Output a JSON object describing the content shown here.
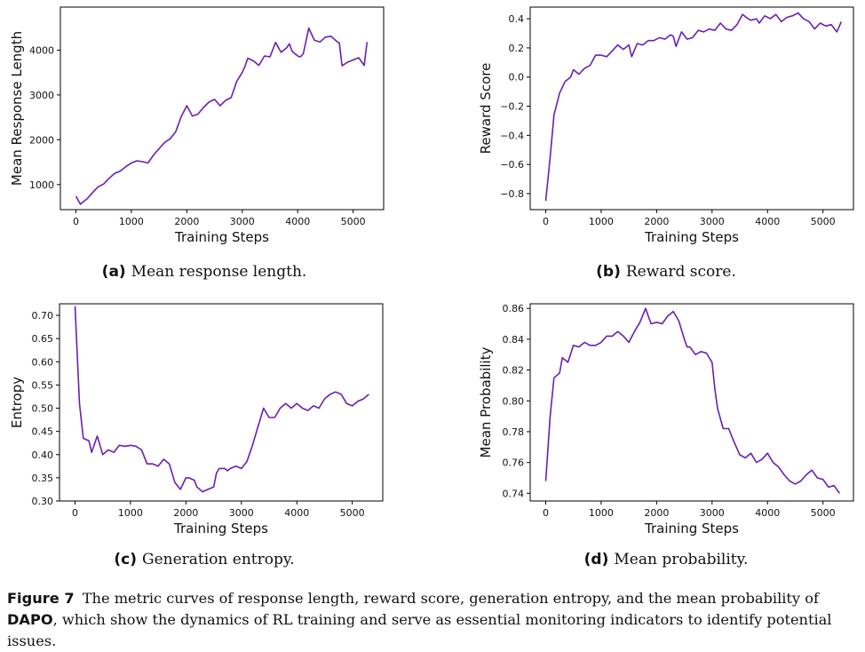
{
  "chart_data": [
    {
      "type": "line",
      "xlabel": "Training Steps",
      "ylabel": "Mean Response Length",
      "xlim": [
        -280,
        5550
      ],
      "ylim": [
        440,
        4960
      ],
      "xticks": [
        0,
        1000,
        2000,
        3000,
        4000,
        5000
      ],
      "yticks": [
        1000,
        2000,
        3000,
        4000
      ],
      "color": "#6a1fb3",
      "series": [
        {
          "x": [
            0,
            80,
            200,
            300,
            400,
            500,
            600,
            700,
            800,
            900,
            1000,
            1100,
            1200,
            1300,
            1400,
            1500,
            1600,
            1700,
            1800,
            1900,
            2000,
            2100,
            2200,
            2300,
            2400,
            2500,
            2600,
            2700,
            2800,
            2900,
            3000,
            3050,
            3100,
            3200,
            3300,
            3400,
            3500,
            3600,
            3700,
            3800,
            3850,
            3900,
            4000,
            4050,
            4100,
            4200,
            4300,
            4400,
            4500,
            4600,
            4700,
            4750,
            4800,
            4900,
            5000,
            5100,
            5200,
            5250
          ],
          "y": [
            740,
            560,
            680,
            820,
            950,
            1010,
            1140,
            1250,
            1300,
            1400,
            1480,
            1530,
            1510,
            1480,
            1660,
            1800,
            1940,
            2020,
            2180,
            2520,
            2760,
            2530,
            2570,
            2720,
            2840,
            2900,
            2760,
            2880,
            2940,
            3300,
            3500,
            3640,
            3820,
            3760,
            3660,
            3870,
            3850,
            4170,
            3950,
            4050,
            4140,
            3970,
            3870,
            3850,
            3920,
            4490,
            4220,
            4180,
            4290,
            4310,
            4200,
            4160,
            3650,
            3730,
            3780,
            3830,
            3660,
            4180
          ],
          "note": "continued"
        }
      ]
    },
    {
      "type": "line",
      "xlabel": "Training Steps",
      "ylabel": "Reward Score",
      "xlim": [
        -280,
        5550
      ],
      "ylim": [
        -0.91,
        0.48
      ],
      "xticks": [
        0,
        1000,
        2000,
        3000,
        4000,
        5000
      ],
      "yticks": [
        -0.8,
        -0.6,
        -0.4,
        -0.2,
        0.0,
        0.2,
        0.4
      ],
      "ytick_labels": [
        "−0.8",
        "−0.6",
        "−0.4",
        "−0.2",
        "0.0",
        "0.2",
        "0.4"
      ],
      "color": "#6a1fb3",
      "series": [
        {
          "x": [
            0,
            80,
            150,
            250,
            350,
            450,
            500,
            600,
            700,
            800,
            900,
            1000,
            1100,
            1200,
            1300,
            1400,
            1500,
            1550,
            1650,
            1750,
            1850,
            1950,
            2050,
            2150,
            2250,
            2300,
            2350,
            2450,
            2550,
            2650,
            2750,
            2850,
            2950,
            3050,
            3150,
            3250,
            3350,
            3450,
            3550,
            3650,
            3700,
            3800,
            3850,
            3950,
            4050,
            4150,
            4250,
            4350,
            4450,
            4550,
            4650,
            4750,
            4850,
            4950,
            5050,
            5150,
            5250,
            5330
          ],
          "y": [
            -0.85,
            -0.55,
            -0.26,
            -0.11,
            -0.03,
            0.0,
            0.05,
            0.02,
            0.06,
            0.08,
            0.15,
            0.15,
            0.14,
            0.18,
            0.22,
            0.19,
            0.22,
            0.14,
            0.23,
            0.22,
            0.25,
            0.25,
            0.27,
            0.26,
            0.29,
            0.28,
            0.21,
            0.31,
            0.26,
            0.27,
            0.32,
            0.31,
            0.33,
            0.32,
            0.37,
            0.33,
            0.32,
            0.36,
            0.43,
            0.4,
            0.39,
            0.4,
            0.37,
            0.42,
            0.4,
            0.43,
            0.38,
            0.41,
            0.42,
            0.44,
            0.4,
            0.38,
            0.33,
            0.37,
            0.35,
            0.36,
            0.31,
            0.38
          ],
          "note": "continued"
        }
      ]
    },
    {
      "type": "line",
      "xlabel": "Training Steps",
      "ylabel": "Entropy",
      "xlim": [
        -280,
        5550
      ],
      "ylim": [
        0.3,
        0.725
      ],
      "xticks": [
        0,
        1000,
        2000,
        3000,
        4000,
        5000
      ],
      "yticks": [
        0.3,
        0.35,
        0.4,
        0.45,
        0.5,
        0.55,
        0.6,
        0.65,
        0.7
      ],
      "ytick_labels": [
        "0.30",
        "0.35",
        "0.40",
        "0.45",
        "0.50",
        "0.55",
        "0.60",
        "0.65",
        "0.70"
      ],
      "color": "#6a1fb3",
      "series": [
        {
          "x": [
            0,
            80,
            150,
            250,
            300,
            400,
            500,
            600,
            700,
            800,
            900,
            1000,
            1100,
            1200,
            1300,
            1400,
            1500,
            1600,
            1700,
            1800,
            1900,
            2000,
            2050,
            2150,
            2200,
            2300,
            2400,
            2500,
            2550,
            2600,
            2700,
            2750,
            2800,
            2900,
            3000,
            3100,
            3200,
            3300,
            3400,
            3500,
            3600,
            3700,
            3800,
            3900,
            4000,
            4100,
            4200,
            4300,
            4400,
            4500,
            4600,
            4700,
            4800,
            4900,
            5000,
            5100,
            5200,
            5300
          ],
          "y": [
            0.72,
            0.51,
            0.435,
            0.43,
            0.405,
            0.44,
            0.4,
            0.41,
            0.405,
            0.42,
            0.418,
            0.42,
            0.418,
            0.41,
            0.38,
            0.38,
            0.375,
            0.39,
            0.38,
            0.34,
            0.325,
            0.35,
            0.35,
            0.345,
            0.33,
            0.32,
            0.325,
            0.33,
            0.36,
            0.37,
            0.37,
            0.365,
            0.37,
            0.375,
            0.37,
            0.385,
            0.42,
            0.46,
            0.5,
            0.48,
            0.48,
            0.5,
            0.51,
            0.5,
            0.51,
            0.5,
            0.495,
            0.505,
            0.5,
            0.52,
            0.53,
            0.535,
            0.53,
            0.51,
            0.505,
            0.515,
            0.52,
            0.53
          ],
          "note": "continued"
        }
      ]
    },
    {
      "type": "line",
      "xlabel": "Training Steps",
      "ylabel": "Mean Probability",
      "xlim": [
        -280,
        5550
      ],
      "ylim": [
        0.735,
        0.863
      ],
      "xticks": [
        0,
        1000,
        2000,
        3000,
        4000,
        5000
      ],
      "yticks": [
        0.74,
        0.76,
        0.78,
        0.8,
        0.82,
        0.84,
        0.86
      ],
      "ytick_labels": [
        "0.74",
        "0.76",
        "0.78",
        "0.80",
        "0.82",
        "0.84",
        "0.86"
      ],
      "color": "#6a1fb3",
      "series": [
        {
          "x": [
            0,
            80,
            150,
            250,
            300,
            400,
            500,
            600,
            700,
            800,
            900,
            1000,
            1100,
            1200,
            1300,
            1400,
            1500,
            1600,
            1700,
            1800,
            1900,
            2000,
            2100,
            2200,
            2300,
            2400,
            2500,
            2550,
            2600,
            2700,
            2800,
            2900,
            3000,
            3050,
            3100,
            3200,
            3300,
            3400,
            3500,
            3600,
            3700,
            3800,
            3900,
            4000,
            4100,
            4200,
            4300,
            4400,
            4500,
            4600,
            4700,
            4800,
            4900,
            5000,
            5100,
            5200,
            5300
          ],
          "y": [
            0.748,
            0.79,
            0.815,
            0.818,
            0.828,
            0.825,
            0.836,
            0.835,
            0.838,
            0.836,
            0.836,
            0.838,
            0.842,
            0.842,
            0.845,
            0.842,
            0.838,
            0.845,
            0.851,
            0.86,
            0.85,
            0.851,
            0.85,
            0.855,
            0.858,
            0.852,
            0.84,
            0.835,
            0.835,
            0.83,
            0.832,
            0.831,
            0.825,
            0.808,
            0.795,
            0.782,
            0.782,
            0.773,
            0.765,
            0.763,
            0.766,
            0.76,
            0.762,
            0.766,
            0.76,
            0.757,
            0.752,
            0.748,
            0.746,
            0.748,
            0.752,
            0.755,
            0.75,
            0.749,
            0.744,
            0.745,
            0.74
          ],
          "note": "continued"
        }
      ]
    }
  ],
  "subcaptions": [
    {
      "tag": "(a)",
      "text": "Mean response length."
    },
    {
      "tag": "(b)",
      "text": "Reward score."
    },
    {
      "tag": "(c)",
      "text": "Generation entropy."
    },
    {
      "tag": "(d)",
      "text": "Mean probability."
    }
  ],
  "figure_caption": {
    "label": "Figure 7",
    "text_before": "The metric curves of response length, reward score, generation entropy, and the mean probability of",
    "bold": "DAPO",
    "text_after": ", which show the dynamics of RL training and serve as essential monitoring indicators to identify potential issues."
  }
}
